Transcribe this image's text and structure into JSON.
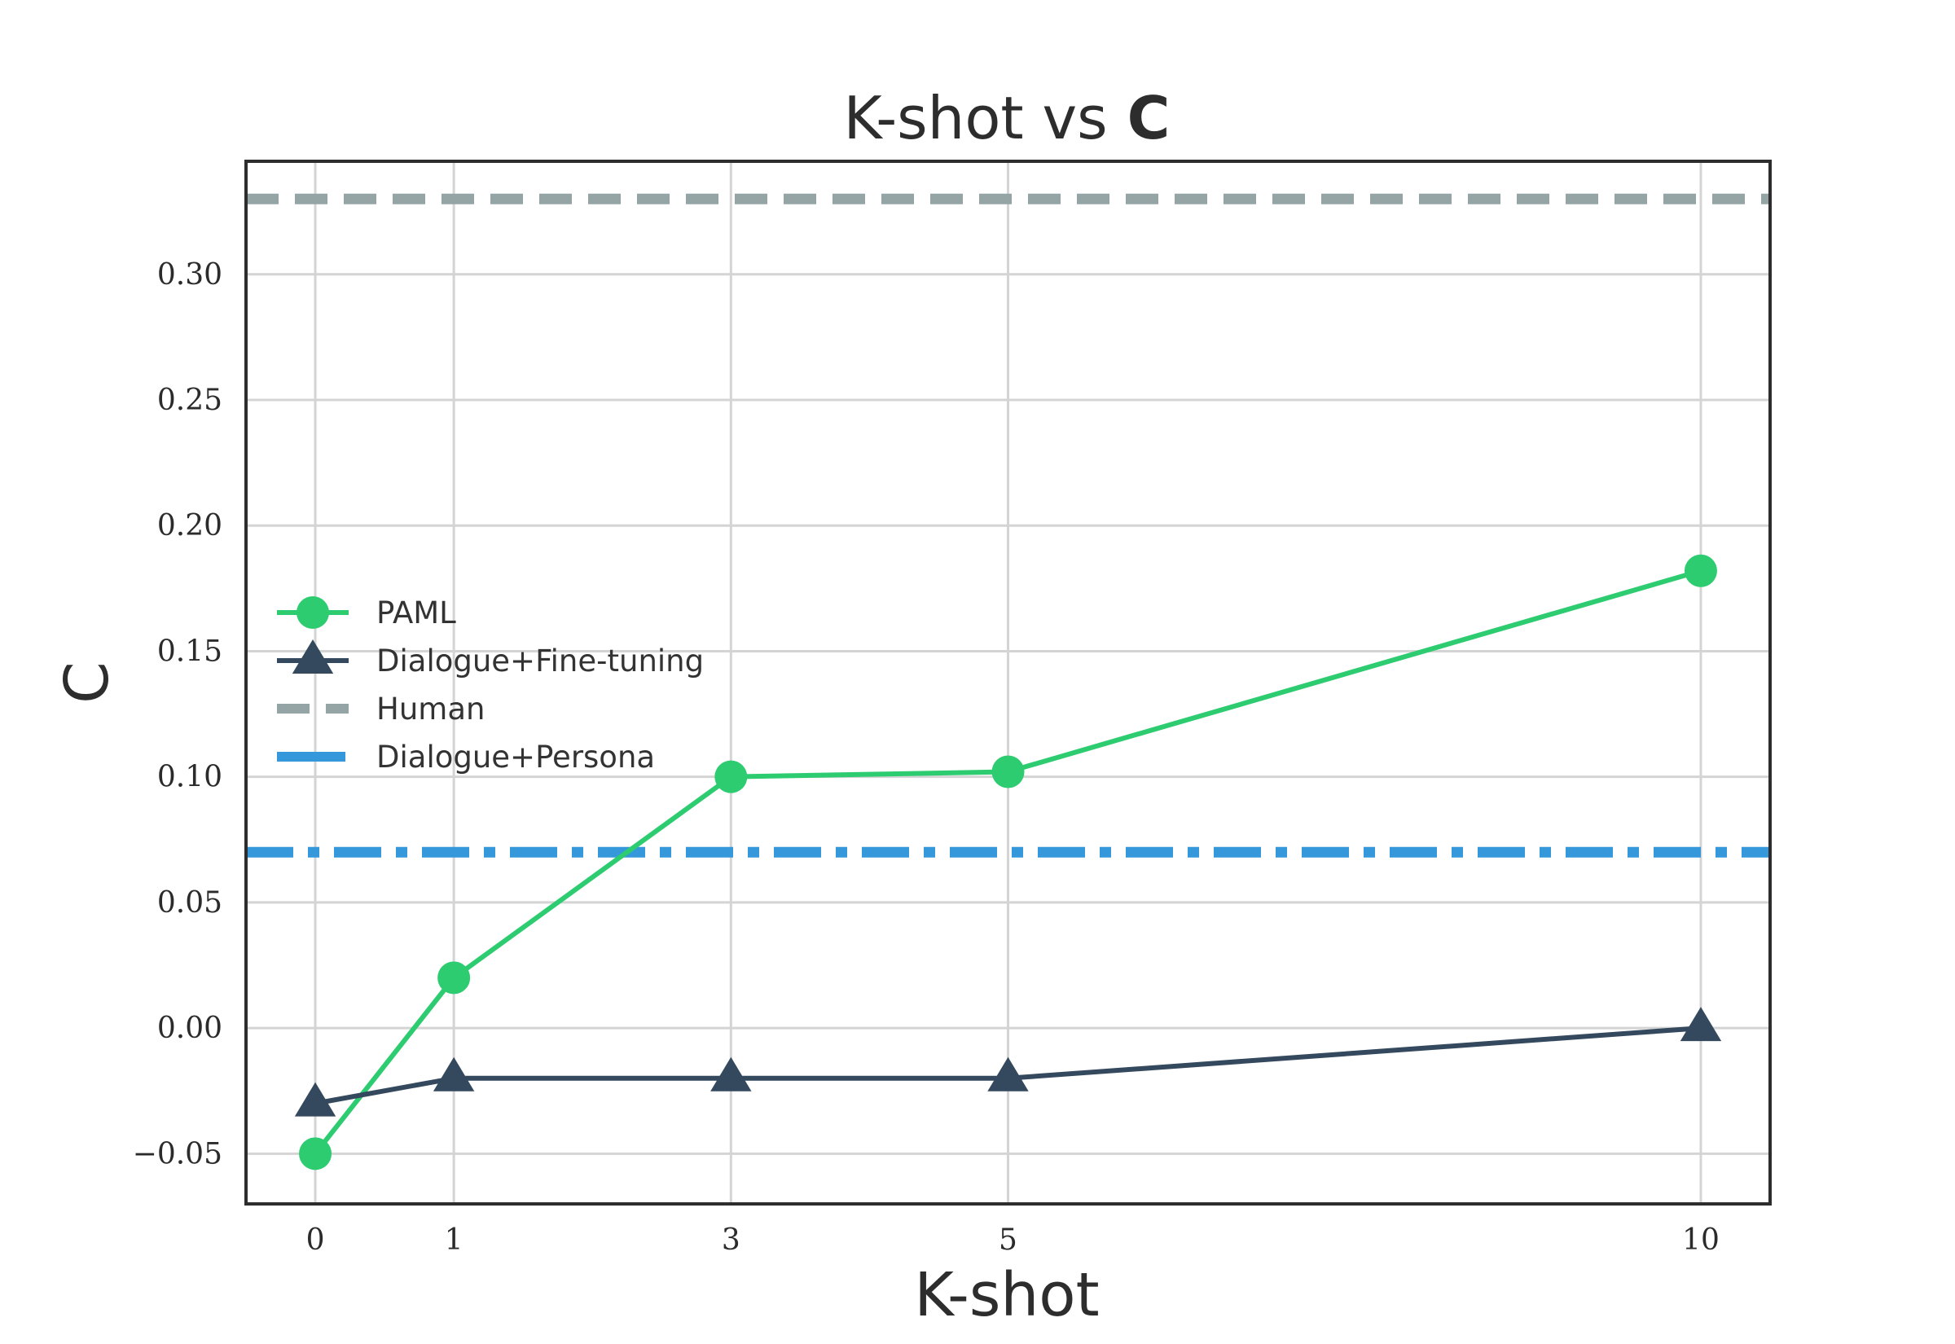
{
  "chart_data": {
    "type": "line",
    "title": "K-shot vs",
    "title_bold": "C",
    "xlabel": "K-shot",
    "ylabel": "C",
    "x": [
      0,
      1,
      3,
      5,
      10
    ],
    "x_tick_labels": [
      "0",
      "1",
      "3",
      "5",
      "10"
    ],
    "xlim": [
      -0.5,
      10.5
    ],
    "ylim": [
      -0.07,
      0.345
    ],
    "y_ticks": [
      -0.05,
      0.0,
      0.05,
      0.1,
      0.15,
      0.2,
      0.25,
      0.3
    ],
    "y_tick_labels": [
      "−0.05",
      "0.00",
      "0.05",
      "0.10",
      "0.15",
      "0.20",
      "0.25",
      "0.30"
    ],
    "grid": true,
    "legend_position": "center-left",
    "series": [
      {
        "name": "PAML",
        "values": [
          -0.05,
          0.02,
          0.1,
          0.102,
          0.182
        ],
        "color": "#2ecc71",
        "marker": "circle",
        "style": "solid"
      },
      {
        "name": "Dialogue+Fine-tuning",
        "values": [
          -0.03,
          -0.02,
          -0.02,
          -0.02,
          0.0
        ],
        "color": "#34495e",
        "marker": "triangle",
        "style": "solid"
      }
    ],
    "reference_lines": [
      {
        "name": "Human",
        "y": 0.33,
        "color": "#95a5a6",
        "style": "dashed"
      },
      {
        "name": "Dialogue+Persona",
        "y": 0.07,
        "color": "#3498db",
        "style": "dashdot"
      }
    ]
  }
}
